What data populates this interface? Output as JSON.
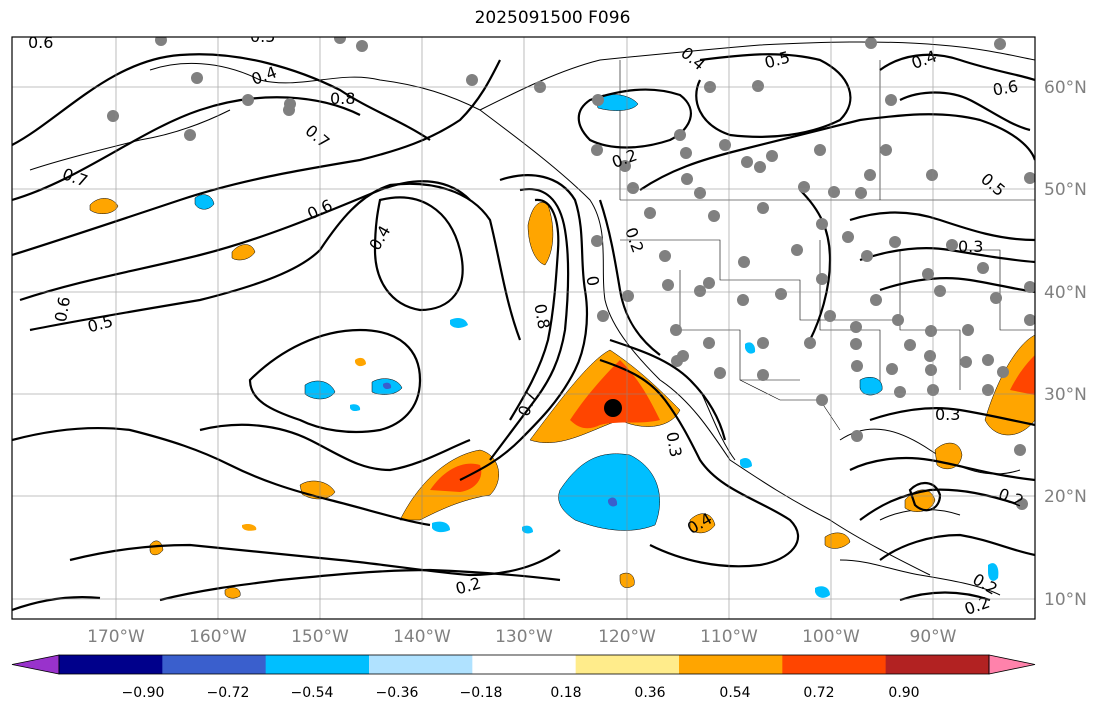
{
  "title": "2025091500 F096",
  "lon_ticks": [
    "170°W",
    "160°W",
    "150°W",
    "140°W",
    "130°W",
    "120°W",
    "110°W",
    "100°W",
    "90°W"
  ],
  "lat_ticks": [
    "60°N",
    "50°N",
    "40°N",
    "30°N",
    "20°N",
    "10°N"
  ],
  "contour_labels": [
    "0.6",
    "0.5",
    "0.4",
    "0.8",
    "0.7",
    "0.7",
    "0.6",
    "0.6",
    "0.5",
    "0.4",
    "0.8",
    "0.7",
    "0.2",
    "0.2",
    "0",
    "0.3",
    "0.4",
    "0.2",
    "0.4",
    "0.5",
    "0.4",
    "0.6",
    "0.5",
    "0.3",
    "0.3",
    "0.2",
    "0.2",
    "0.2"
  ],
  "colorbar": {
    "tick_labels": [
      "−0.90",
      "−0.72",
      "−0.54",
      "−0.36",
      "−0.18",
      "0.18",
      "0.36",
      "0.54",
      "0.72",
      "0.90"
    ],
    "colors": [
      "#9932cc",
      "#00008b",
      "#3a5fcd",
      "#00bfff",
      "#b0e2ff",
      "#ffffff",
      "#ffec8b",
      "#ffa500",
      "#ff4500",
      "#b22222",
      "#ff82ab"
    ]
  },
  "marker": "black-dot-center-point"
}
